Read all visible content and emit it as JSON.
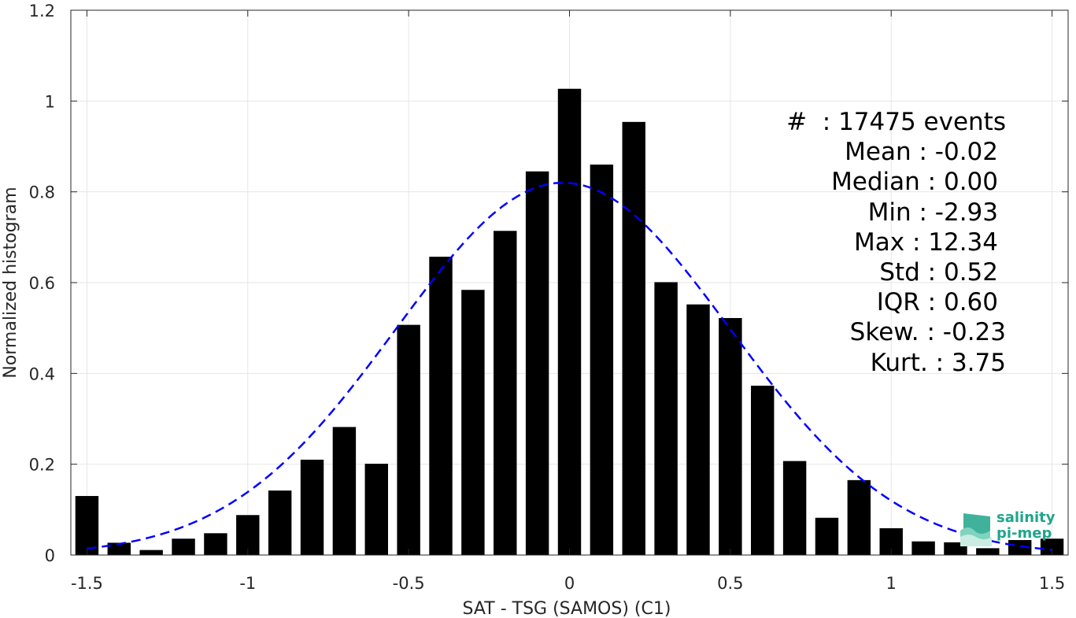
{
  "chart_data": {
    "type": "bar",
    "xlabel": "SAT - TSG (SAMOS) (C1)",
    "ylabel": "Normalized histogram",
    "xlim": [
      -1.55,
      1.55
    ],
    "ylim": [
      0,
      1.2
    ],
    "xticks": [
      "-1.5",
      "-1",
      "-0.5",
      "0",
      "0.5",
      "1",
      "1.5"
    ],
    "xtick_values": [
      -1.5,
      -1,
      -0.5,
      0,
      0.5,
      1,
      1.5
    ],
    "yticks": [
      "0",
      "0.2",
      "0.4",
      "0.6",
      "0.8",
      "1",
      "1.2"
    ],
    "ytick_values": [
      0,
      0.2,
      0.4,
      0.6,
      0.8,
      1,
      1.2
    ],
    "grid": true,
    "bin_width": 0.1,
    "bins": {
      "x": [
        -1.5,
        -1.4,
        -1.3,
        -1.2,
        -1.1,
        -1.0,
        -0.9,
        -0.8,
        -0.7,
        -0.6,
        -0.5,
        -0.4,
        -0.3,
        -0.2,
        -0.1,
        0.0,
        0.1,
        0.2,
        0.3,
        0.4,
        0.5,
        0.6,
        0.7,
        0.8,
        0.9,
        1.0,
        1.1,
        1.2,
        1.3,
        1.4,
        1.5
      ],
      "values": [
        0.13,
        0.027,
        0.011,
        0.036,
        0.048,
        0.088,
        0.142,
        0.21,
        0.282,
        0.201,
        0.507,
        0.657,
        0.584,
        0.714,
        0.845,
        1.027,
        0.86,
        0.954,
        0.601,
        0.552,
        0.522,
        0.373,
        0.207,
        0.082,
        0.165,
        0.059,
        0.03,
        0.028,
        0.015,
        0.033,
        0.036
      ],
      "color": "#000000"
    },
    "fit": {
      "type": "gaussian",
      "mean": -0.02,
      "std": 0.52,
      "peak": 0.82,
      "x_range": [
        -1.5,
        1.5
      ],
      "color": "#0000ff",
      "style": "dashed"
    }
  },
  "stats": {
    "events": "#  : 17475 events",
    "mean": "Mean : -0.02",
    "median": "Median : 0.00",
    "min": "Min : -2.93",
    "max": "Max : 12.34",
    "std": "Std : 0.52",
    "iqr": "IQR : 0.60",
    "skew": "Skew. : -0.23",
    "kurt": "Kurt. : 3.75"
  },
  "logo": {
    "line1": "salinity",
    "line2": "pi-mep",
    "color": "#1fa58b"
  }
}
